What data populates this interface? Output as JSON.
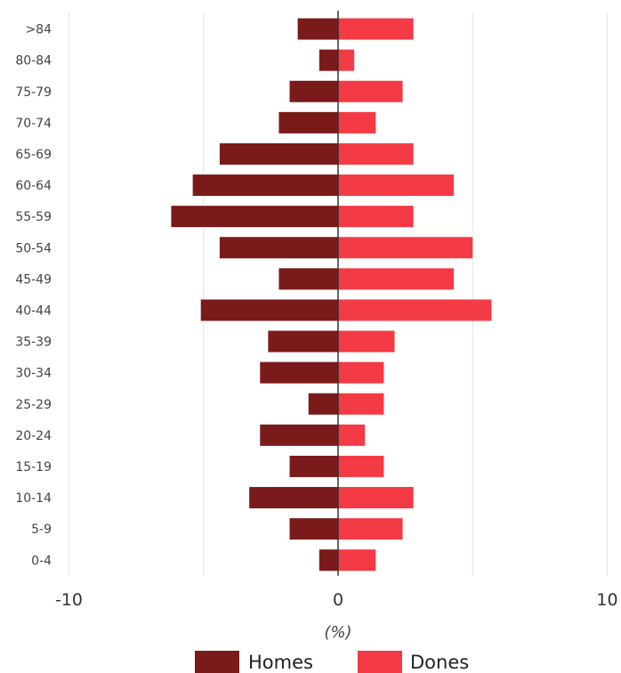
{
  "chart_data": {
    "type": "bar",
    "orientation": "horizontal",
    "stacked": "diverging",
    "categories": [
      ">84",
      "80-84",
      "75-79",
      "70-74",
      "65-69",
      "60-64",
      "55-59",
      "50-54",
      "45-49",
      "40-44",
      "35-39",
      "30-34",
      "25-29",
      "20-24",
      "15-19",
      "10-14",
      "5-9",
      "0-4"
    ],
    "series": [
      {
        "name": "Homes",
        "color": "#7b1a1a",
        "values": [
          -1.5,
          -0.7,
          -1.8,
          -2.2,
          -4.4,
          -5.4,
          -6.2,
          -4.4,
          -2.2,
          -5.1,
          -2.6,
          -2.9,
          -1.1,
          -2.9,
          -1.8,
          -3.3,
          -1.8,
          -0.7
        ]
      },
      {
        "name": "Dones",
        "color": "#f43a45",
        "values": [
          2.8,
          0.6,
          2.4,
          1.4,
          2.8,
          4.3,
          2.8,
          5.0,
          4.3,
          5.7,
          2.1,
          1.7,
          1.7,
          1.0,
          1.7,
          2.8,
          2.4,
          1.4
        ]
      }
    ],
    "xlim": [
      -10,
      10
    ],
    "xticks": [
      "-10",
      "0",
      "10"
    ],
    "xlabel": "(%)",
    "grid": "vertical",
    "legend_position": "bottom"
  }
}
